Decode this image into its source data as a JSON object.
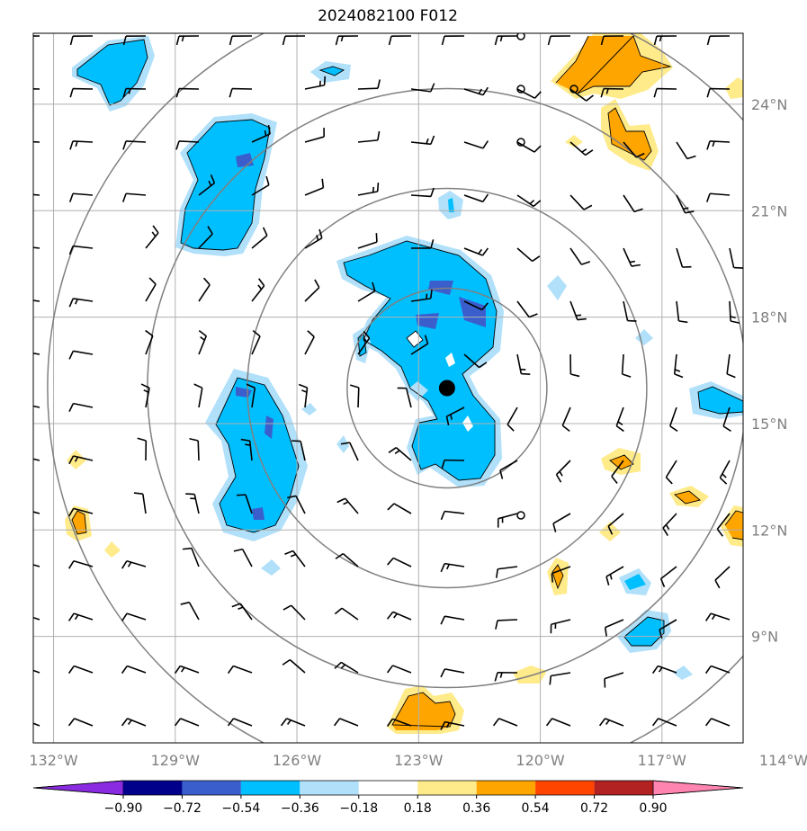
{
  "title": "2024082100 F012",
  "map": {
    "lon_range": [
      -132.5,
      -115.0
    ],
    "lat_range": [
      6.0,
      26.0
    ],
    "lon_ticks": [
      {
        "value": -132,
        "label": "132°W"
      },
      {
        "value": -129,
        "label": "129°W"
      },
      {
        "value": -126,
        "label": "126°W"
      },
      {
        "value": -123,
        "label": "123°W"
      },
      {
        "value": -120,
        "label": "120°W"
      },
      {
        "value": -117,
        "label": "117°W"
      },
      {
        "value": -114,
        "label": "114°W"
      }
    ],
    "lat_ticks": [
      {
        "value": 24,
        "label": "24°N"
      },
      {
        "value": 21,
        "label": "21°N"
      },
      {
        "value": 18,
        "label": "18°N"
      },
      {
        "value": 15,
        "label": "15°N"
      },
      {
        "value": 12,
        "label": "12°N"
      },
      {
        "value": 9,
        "label": "9°N"
      }
    ],
    "center": {
      "lon": -122.3,
      "lat": 16.0
    },
    "range_ring_count": 4,
    "grid": true
  },
  "colorbar": {
    "levels": [
      {
        "value": -0.9,
        "label": "−0.90"
      },
      {
        "value": -0.72,
        "label": "−0.72"
      },
      {
        "value": -0.54,
        "label": "−0.54"
      },
      {
        "value": -0.36,
        "label": "−0.36"
      },
      {
        "value": -0.18,
        "label": "−0.18"
      },
      {
        "value": 0.18,
        "label": "0.18"
      },
      {
        "value": 0.36,
        "label": "0.36"
      },
      {
        "value": 0.54,
        "label": "0.54"
      },
      {
        "value": 0.72,
        "label": "0.72"
      },
      {
        "value": 0.9,
        "label": "0.90"
      }
    ],
    "colors": [
      "#8a2be2",
      "#00008b",
      "#3a5fcd",
      "#00bfff",
      "#b0e0fa",
      "#ffffff",
      "#ffeb8a",
      "#ffa500",
      "#ff4500",
      "#b22222",
      "#ff85b0"
    ]
  }
}
